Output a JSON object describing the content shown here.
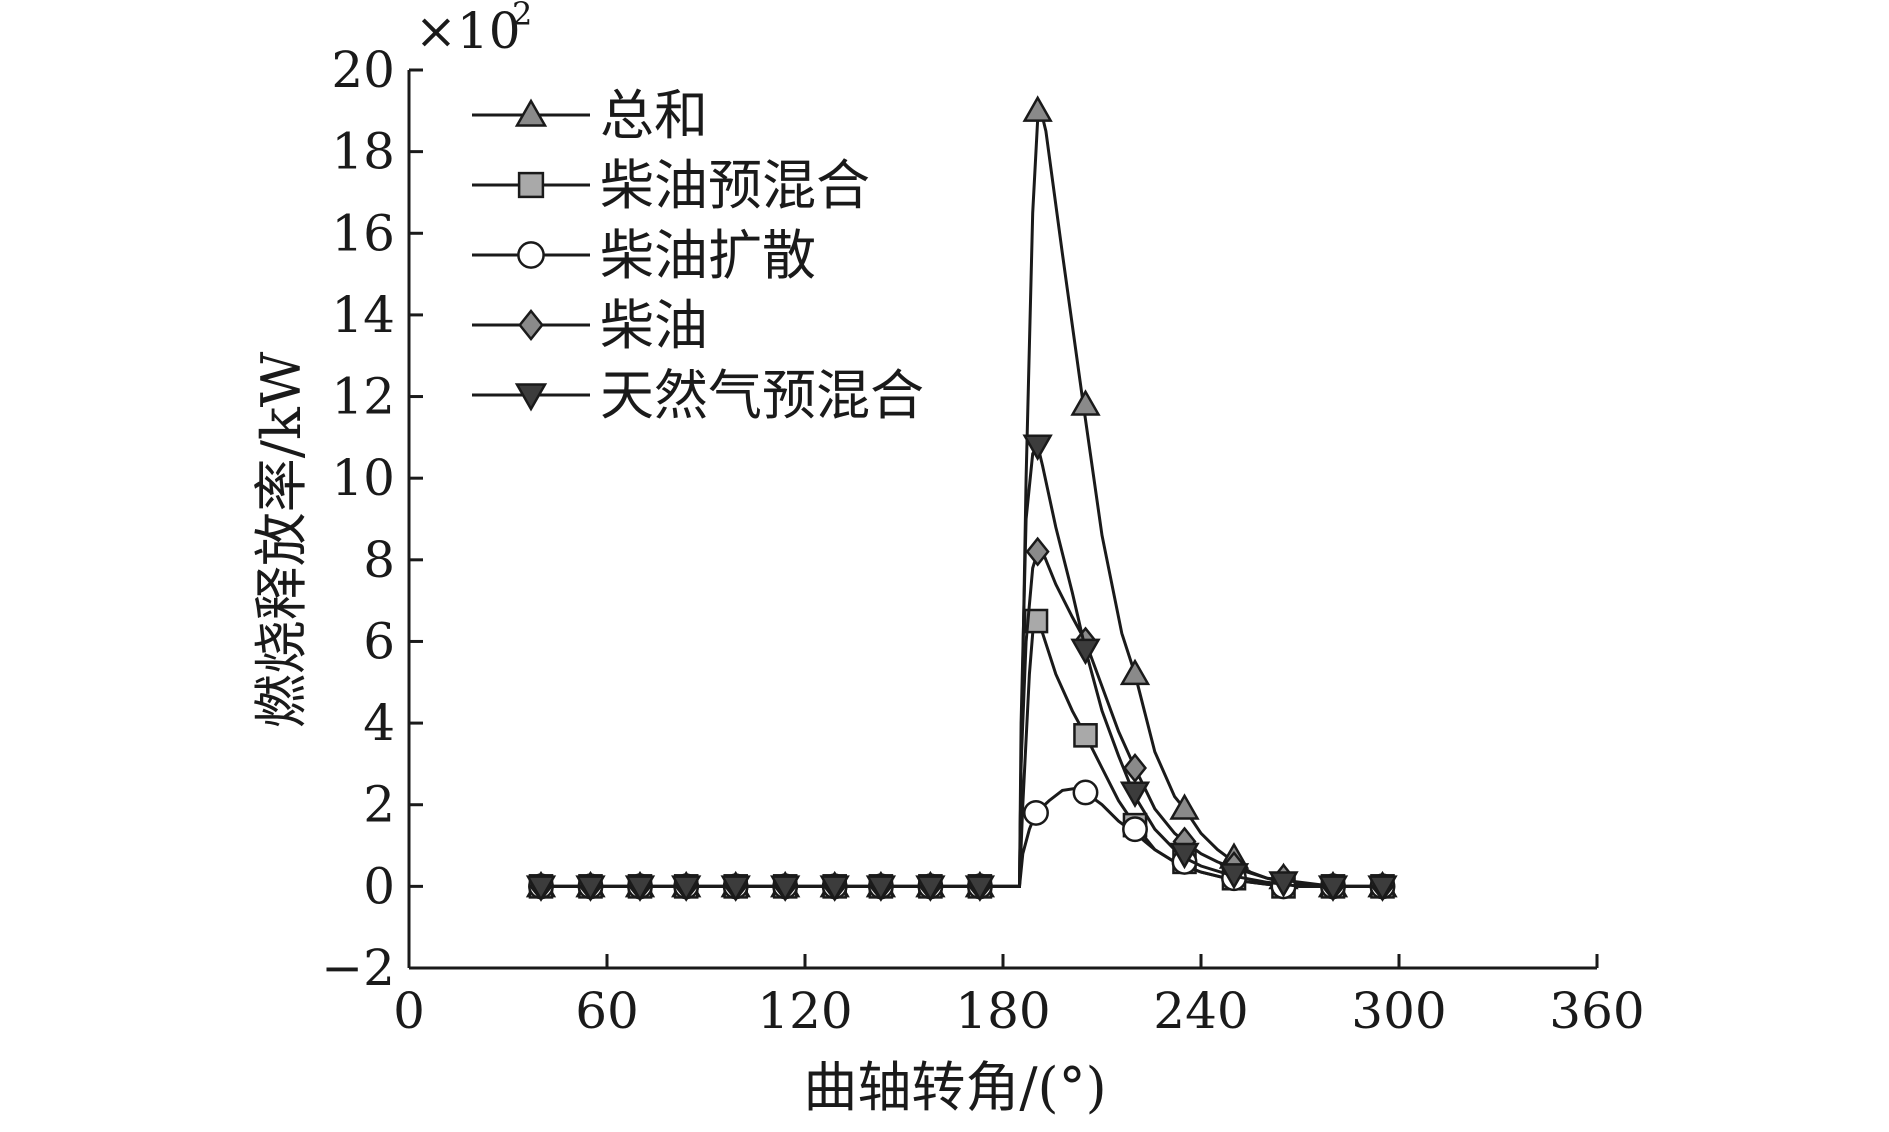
{
  "chart_data": {
    "type": "line",
    "title": "",
    "xlabel": "曲轴转角/(°)",
    "ylabel": "燃烧释放率/kW",
    "y_multiplier": "×10",
    "y_multiplier_exp": "2",
    "xlim": [
      0,
      360
    ],
    "ylim": [
      -2,
      20
    ],
    "xticks": [
      0,
      60,
      120,
      180,
      240,
      300,
      360
    ],
    "xtick_labels": [
      "0",
      "60",
      "120",
      "180",
      "240",
      "300",
      "360"
    ],
    "yticks": [
      -2,
      0,
      2,
      4,
      6,
      8,
      10,
      12,
      14,
      16,
      18,
      20
    ],
    "ytick_labels": [
      "−2",
      "0",
      "2",
      "4",
      "6",
      "8",
      "10",
      "12",
      "14",
      "16",
      "18",
      "20"
    ],
    "grid": false,
    "legend_position": "top-left",
    "colors": {
      "dark": "#3c3c3c",
      "mid": "#8a8a8a",
      "light": "#a9a9a9",
      "white": "#ffffff",
      "axis": "#1a1a1a"
    },
    "series": [
      {
        "name": "总和",
        "marker": "triangle-up",
        "fill": "#8a8a8a",
        "line": [
          [
            40,
            0
          ],
          [
            185,
            0
          ],
          [
            185.5,
            3
          ],
          [
            187,
            10
          ],
          [
            189,
            16.5
          ],
          [
            190.5,
            18.8
          ],
          [
            191.5,
            19.0
          ],
          [
            193,
            18.5
          ],
          [
            198,
            15.5
          ],
          [
            204,
            12
          ],
          [
            210,
            8.6
          ],
          [
            216,
            6.2
          ],
          [
            220,
            5.2
          ],
          [
            226,
            3.3
          ],
          [
            232,
            2.2
          ],
          [
            235,
            1.9
          ],
          [
            240,
            1.3
          ],
          [
            245,
            0.9
          ],
          [
            250,
            0.6
          ],
          [
            255,
            0.35
          ],
          [
            260,
            0.2
          ],
          [
            265,
            0.1
          ],
          [
            270,
            0.05
          ],
          [
            280,
            0
          ],
          [
            295,
            0
          ]
        ],
        "markers": [
          [
            40,
            0
          ],
          [
            55,
            0
          ],
          [
            70,
            0
          ],
          [
            84,
            0
          ],
          [
            99,
            0
          ],
          [
            114,
            0
          ],
          [
            129,
            0
          ],
          [
            143,
            0
          ],
          [
            158,
            0
          ],
          [
            173,
            0
          ],
          [
            190.5,
            19.0
          ],
          [
            205,
            11.8
          ],
          [
            220,
            5.2
          ],
          [
            235,
            1.9
          ],
          [
            250,
            0.7
          ],
          [
            265,
            0.2
          ],
          [
            280,
            0
          ],
          [
            295,
            0
          ]
        ]
      },
      {
        "name": "柴油预混合",
        "marker": "square",
        "fill": "#a9a9a9",
        "line": [
          [
            40,
            0
          ],
          [
            185,
            0
          ],
          [
            186,
            2
          ],
          [
            188,
            5.2
          ],
          [
            189,
            6.2
          ],
          [
            190,
            6.5
          ],
          [
            192,
            6.2
          ],
          [
            196,
            5.2
          ],
          [
            201,
            4.3
          ],
          [
            205,
            3.7
          ],
          [
            210,
            2.9
          ],
          [
            215,
            2.1
          ],
          [
            220,
            1.5
          ],
          [
            226,
            0.9
          ],
          [
            232,
            0.6
          ],
          [
            240,
            0.35
          ],
          [
            250,
            0.15
          ],
          [
            260,
            0.05
          ],
          [
            270,
            0
          ],
          [
            280,
            0
          ],
          [
            295,
            0
          ]
        ],
        "markers": [
          [
            40,
            0
          ],
          [
            55,
            0
          ],
          [
            70,
            0
          ],
          [
            84,
            0
          ],
          [
            99,
            0
          ],
          [
            114,
            0
          ],
          [
            129,
            0
          ],
          [
            143,
            0
          ],
          [
            158,
            0
          ],
          [
            173,
            0
          ],
          [
            190,
            6.5
          ],
          [
            205,
            3.7
          ],
          [
            220,
            1.5
          ],
          [
            235,
            0.6
          ],
          [
            250,
            0.2
          ],
          [
            265,
            0
          ],
          [
            280,
            0
          ],
          [
            295,
            0
          ]
        ]
      },
      {
        "name": "柴油扩散",
        "marker": "circle",
        "fill": "#ffffff",
        "line": [
          [
            40,
            0
          ],
          [
            185,
            0
          ],
          [
            186,
            0.8
          ],
          [
            188,
            1.4
          ],
          [
            190,
            1.8
          ],
          [
            194,
            2.1
          ],
          [
            198,
            2.35
          ],
          [
            202,
            2.4
          ],
          [
            205,
            2.3
          ],
          [
            210,
            2.0
          ],
          [
            215,
            1.6
          ],
          [
            220,
            1.3
          ],
          [
            226,
            0.9
          ],
          [
            232,
            0.6
          ],
          [
            240,
            0.35
          ],
          [
            250,
            0.15
          ],
          [
            260,
            0.05
          ],
          [
            270,
            0
          ],
          [
            280,
            0
          ],
          [
            295,
            0
          ]
        ],
        "markers": [
          [
            40,
            0
          ],
          [
            55,
            0
          ],
          [
            70,
            0
          ],
          [
            84,
            0
          ],
          [
            99,
            0
          ],
          [
            114,
            0
          ],
          [
            129,
            0
          ],
          [
            143,
            0
          ],
          [
            158,
            0
          ],
          [
            173,
            0
          ],
          [
            190,
            1.8
          ],
          [
            205,
            2.3
          ],
          [
            220,
            1.4
          ],
          [
            235,
            0.6
          ],
          [
            250,
            0.2
          ],
          [
            265,
            0
          ],
          [
            280,
            0
          ],
          [
            295,
            0
          ]
        ]
      },
      {
        "name": "柴油",
        "marker": "diamond",
        "fill": "#8a8a8a",
        "line": [
          [
            40,
            0
          ],
          [
            185,
            0
          ],
          [
            185.5,
            3
          ],
          [
            187,
            6
          ],
          [
            189,
            7.8
          ],
          [
            190.5,
            8.2
          ],
          [
            192,
            8.2
          ],
          [
            196,
            7.4
          ],
          [
            201,
            6.6
          ],
          [
            205,
            6.0
          ],
          [
            210,
            4.9
          ],
          [
            215,
            3.8
          ],
          [
            220,
            2.9
          ],
          [
            226,
            1.9
          ],
          [
            232,
            1.3
          ],
          [
            235,
            1.1
          ],
          [
            240,
            0.8
          ],
          [
            245,
            0.6
          ],
          [
            250,
            0.45
          ],
          [
            260,
            0.2
          ],
          [
            265,
            0.15
          ],
          [
            270,
            0.1
          ],
          [
            280,
            0
          ],
          [
            295,
            0
          ]
        ],
        "markers": [
          [
            40,
            0
          ],
          [
            55,
            0
          ],
          [
            70,
            0
          ],
          [
            84,
            0
          ],
          [
            99,
            0
          ],
          [
            114,
            0
          ],
          [
            129,
            0
          ],
          [
            143,
            0
          ],
          [
            158,
            0
          ],
          [
            173,
            0
          ],
          [
            190.5,
            8.2
          ],
          [
            205,
            6.0
          ],
          [
            220,
            2.9
          ],
          [
            235,
            1.1
          ],
          [
            250,
            0.5
          ],
          [
            265,
            0.2
          ],
          [
            280,
            0
          ],
          [
            295,
            0
          ]
        ]
      },
      {
        "name": "天然气预混合",
        "marker": "triangle-down",
        "fill": "#3c3c3c",
        "line": [
          [
            40,
            0
          ],
          [
            185,
            0
          ],
          [
            185.5,
            4
          ],
          [
            187,
            9
          ],
          [
            189,
            10.6
          ],
          [
            190.5,
            10.8
          ],
          [
            192,
            10.3
          ],
          [
            196,
            8.8
          ],
          [
            201,
            7.2
          ],
          [
            205,
            5.8
          ],
          [
            210,
            4.3
          ],
          [
            215,
            3.2
          ],
          [
            220,
            2.2
          ],
          [
            226,
            1.4
          ],
          [
            232,
            0.9
          ],
          [
            235,
            0.7
          ],
          [
            240,
            0.5
          ],
          [
            250,
            0.25
          ],
          [
            260,
            0.1
          ],
          [
            270,
            0
          ],
          [
            280,
            0
          ],
          [
            295,
            0
          ]
        ],
        "markers": [
          [
            40,
            0
          ],
          [
            55,
            0
          ],
          [
            70,
            0
          ],
          [
            84,
            0
          ],
          [
            99,
            0
          ],
          [
            114,
            0
          ],
          [
            129,
            0
          ],
          [
            143,
            0
          ],
          [
            158,
            0
          ],
          [
            173,
            0
          ],
          [
            190.5,
            10.8
          ],
          [
            205,
            5.8
          ],
          [
            220,
            2.3
          ],
          [
            235,
            0.8
          ],
          [
            250,
            0.3
          ],
          [
            265,
            0.1
          ],
          [
            280,
            0
          ],
          [
            295,
            0
          ]
        ]
      }
    ]
  }
}
